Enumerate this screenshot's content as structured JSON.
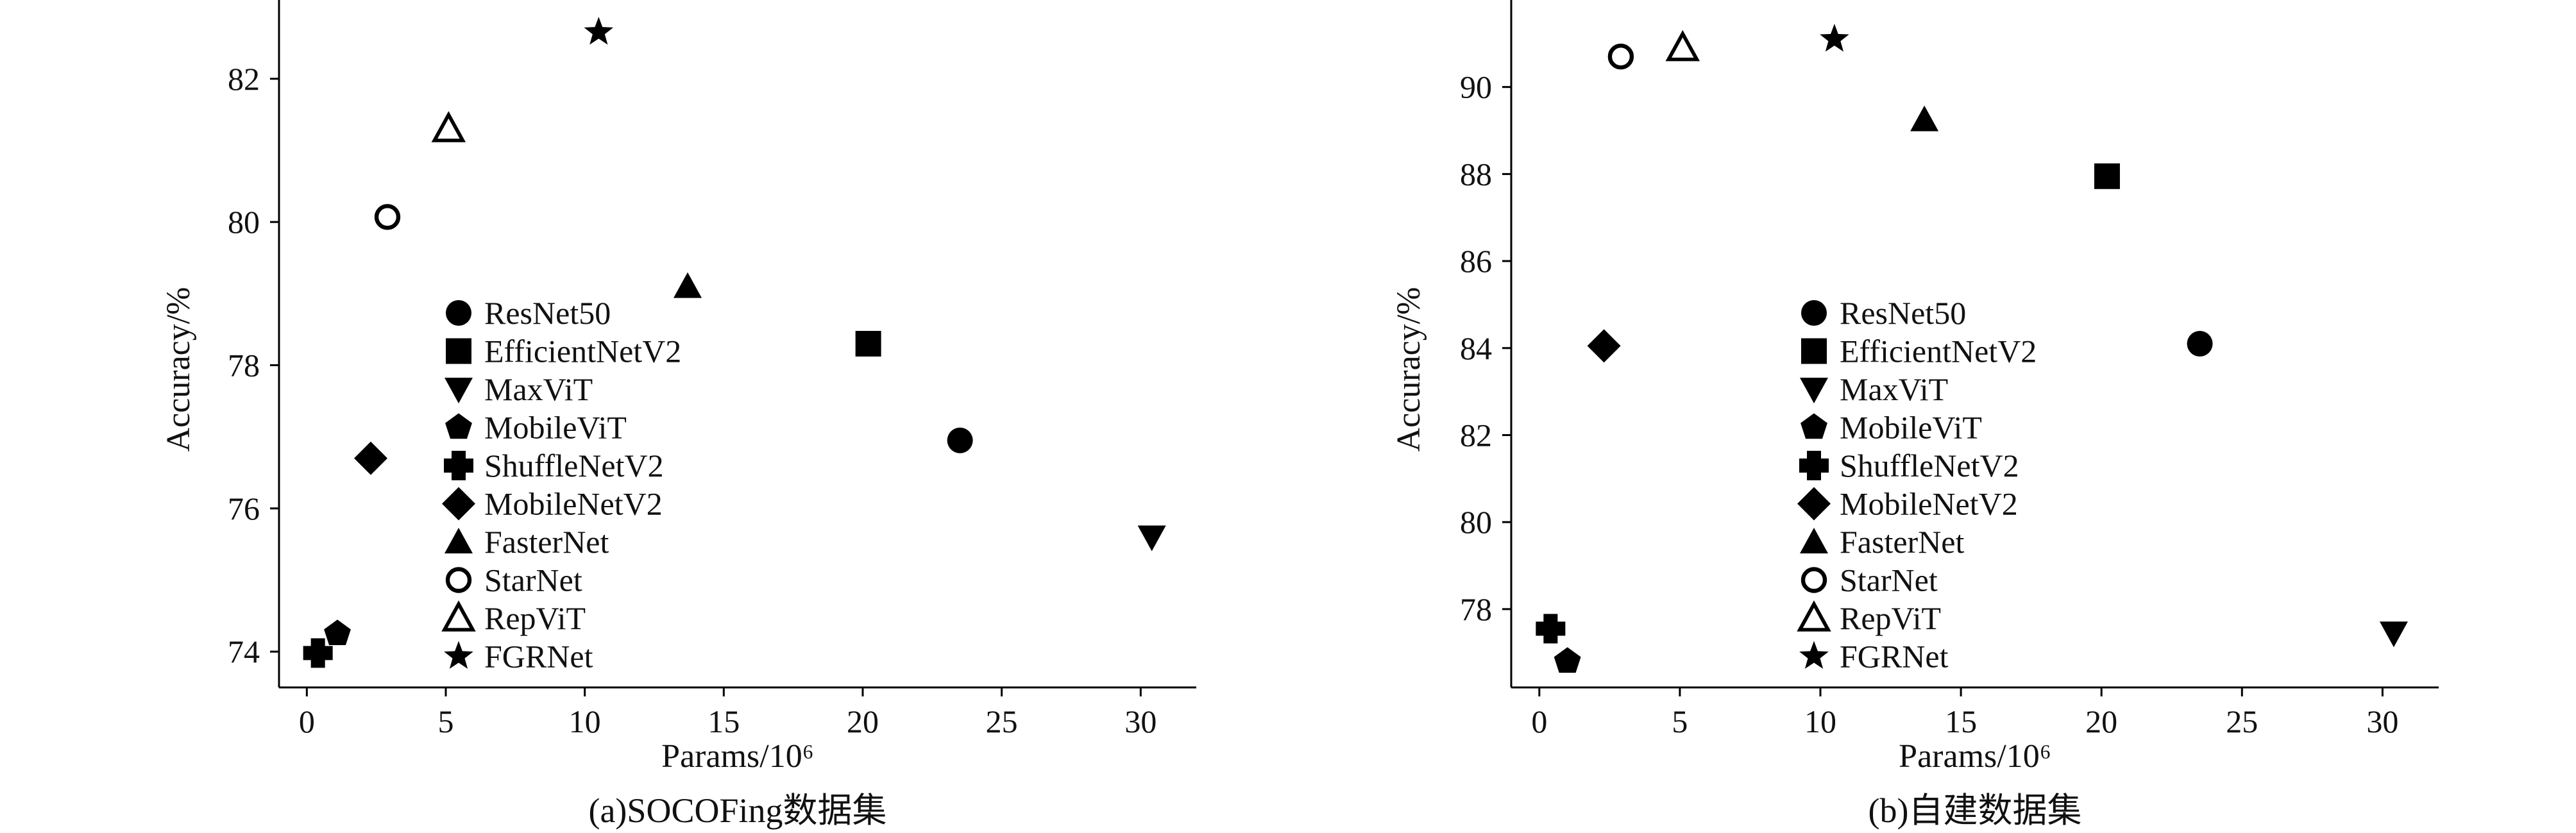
{
  "figure": {
    "panels": [
      "SOCOFing",
      "custom"
    ]
  },
  "chart_data": [
    {
      "type": "scatter",
      "id": "SOCOFing",
      "caption": "(a)SOCOFing数据集",
      "xlabel": "Params/10⁶",
      "ylabel": "Accuracy/%",
      "xlim": [
        -1,
        32
      ],
      "ylim": [
        73.5,
        83.1
      ],
      "xticks": [
        0,
        5,
        10,
        15,
        20,
        25,
        30
      ],
      "yticks": [
        74,
        76,
        78,
        80,
        82
      ],
      "grid": false,
      "legend_position": "center-left",
      "series": [
        {
          "name": "ResNet50",
          "marker": "circle",
          "x": 23.5,
          "y": 76.95
        },
        {
          "name": "EfficientNetV2",
          "marker": "square",
          "x": 20.2,
          "y": 78.3
        },
        {
          "name": "MaxViT",
          "marker": "triangle-down",
          "x": 30.4,
          "y": 75.6
        },
        {
          "name": "MobileViT",
          "marker": "pentagon",
          "x": 1.1,
          "y": 74.25
        },
        {
          "name": "ShuffleNetV2",
          "marker": "plus",
          "x": 0.4,
          "y": 73.98
        },
        {
          "name": "MobileNetV2",
          "marker": "diamond",
          "x": 2.3,
          "y": 76.7
        },
        {
          "name": "FasterNet",
          "marker": "triangle-up",
          "x": 13.7,
          "y": 79.1
        },
        {
          "name": "StarNet",
          "marker": "circle-open",
          "x": 2.9,
          "y": 80.07
        },
        {
          "name": "RepViT",
          "marker": "triangle-up-open",
          "x": 5.1,
          "y": 81.3
        },
        {
          "name": "FGRNet",
          "marker": "star",
          "x": 10.5,
          "y": 82.65
        }
      ]
    },
    {
      "type": "scatter",
      "id": "custom",
      "caption": "(b)自建数据集",
      "xlabel": "Params/10⁶",
      "ylabel": "Accuracy/%",
      "xlim": [
        -1,
        32
      ],
      "ylim": [
        76.2,
        92.0
      ],
      "xticks": [
        0,
        5,
        10,
        15,
        20,
        25,
        30
      ],
      "yticks": [
        78,
        80,
        82,
        84,
        86,
        88,
        90
      ],
      "grid": false,
      "legend_position": "center",
      "series": [
        {
          "name": "ResNet50",
          "marker": "circle",
          "x": 23.5,
          "y": 84.1
        },
        {
          "name": "EfficientNetV2",
          "marker": "square",
          "x": 20.2,
          "y": 87.95
        },
        {
          "name": "MaxViT",
          "marker": "triangle-down",
          "x": 30.4,
          "y": 77.45
        },
        {
          "name": "MobileViT",
          "marker": "pentagon",
          "x": 1.0,
          "y": 76.8
        },
        {
          "name": "ShuffleNetV2",
          "marker": "plus",
          "x": 0.4,
          "y": 77.55
        },
        {
          "name": "MobileNetV2",
          "marker": "diamond",
          "x": 2.3,
          "y": 84.05
        },
        {
          "name": "FasterNet",
          "marker": "triangle-up",
          "x": 13.7,
          "y": 89.25
        },
        {
          "name": "StarNet",
          "marker": "circle-open",
          "x": 2.9,
          "y": 90.7
        },
        {
          "name": "RepViT",
          "marker": "triangle-up-open",
          "x": 5.1,
          "y": 90.9
        },
        {
          "name": "FGRNet",
          "marker": "star",
          "x": 10.5,
          "y": 91.1
        }
      ]
    }
  ]
}
